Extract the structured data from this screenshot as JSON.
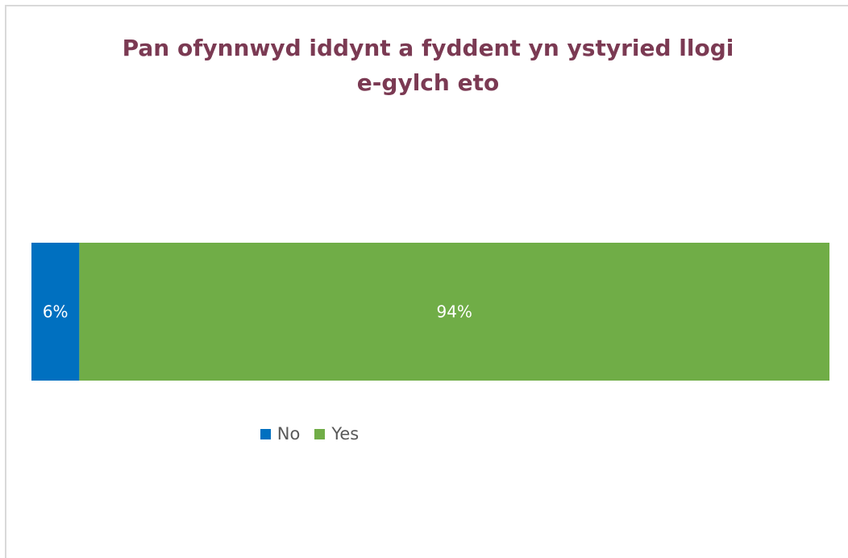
{
  "chart_data": {
    "type": "bar",
    "orientation": "horizontal",
    "stacked": true,
    "title": [
      "Pan ofynnwyd iddynt a fyddent yn ystyried llogi",
      "e-gylch eto"
    ],
    "categories": [
      ""
    ],
    "series": [
      {
        "name": "No",
        "values": [
          6
        ],
        "label": "6%",
        "color": "#0070c0"
      },
      {
        "name": "Yes",
        "values": [
          94
        ],
        "label": "94%",
        "color": "#70ad47"
      }
    ],
    "xlim": [
      0,
      100
    ],
    "grid": false,
    "legend": "bottom",
    "title_color": "#7b3a53",
    "label_color": "#ffffff"
  }
}
